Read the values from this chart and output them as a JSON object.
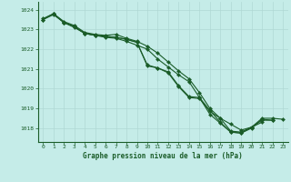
{
  "title": "Graphe pression niveau de la mer (hPa)",
  "background_color": "#c5ece8",
  "grid_color": "#b0d8d4",
  "line_color": "#1a5c28",
  "marker_color": "#1a5c28",
  "xlim": [
    -0.5,
    23.5
  ],
  "ylim": [
    1017.3,
    1024.4
  ],
  "yticks": [
    1018,
    1019,
    1020,
    1021,
    1022,
    1023,
    1024
  ],
  "xticks": [
    0,
    1,
    2,
    3,
    4,
    5,
    6,
    7,
    8,
    9,
    10,
    11,
    12,
    13,
    14,
    15,
    16,
    17,
    18,
    19,
    20,
    21,
    22,
    23
  ],
  "series": [
    [
      1023.5,
      1023.8,
      1023.4,
      1023.2,
      1022.85,
      1022.75,
      1022.7,
      1022.75,
      1022.55,
      1022.4,
      1022.15,
      1021.8,
      1021.35,
      1020.9,
      1020.5,
      1019.8,
      1019.0,
      1018.5,
      1018.2,
      1017.9,
      1018.05,
      1018.3,
      null,
      null
    ],
    [
      1023.5,
      1023.75,
      1023.35,
      1023.15,
      1022.8,
      1022.7,
      1022.65,
      1022.6,
      1022.5,
      1022.35,
      1021.15,
      1021.05,
      1020.8,
      1020.1,
      1019.55,
      1019.5,
      1018.85,
      1018.5,
      1017.85,
      1017.8,
      1018.05,
      1018.4,
      1018.4,
      null
    ],
    [
      1023.55,
      1023.8,
      1023.35,
      1023.15,
      1022.8,
      1022.7,
      1022.65,
      1022.6,
      1022.5,
      1022.35,
      1021.2,
      1021.05,
      1020.85,
      1020.15,
      1019.6,
      1019.55,
      1018.7,
      1018.25,
      1017.8,
      1017.75,
      1018.0,
      1018.45,
      1018.4,
      null
    ],
    [
      null,
      1023.8,
      1023.35,
      1023.1,
      1022.8,
      1022.7,
      1022.6,
      1022.55,
      1022.4,
      1022.2,
      1022.0,
      1021.5,
      1021.1,
      1020.7,
      1020.35,
      1019.55,
      1018.9,
      1018.3,
      1017.8,
      1017.75,
      1018.05,
      1018.5,
      1018.5,
      1018.45
    ]
  ]
}
